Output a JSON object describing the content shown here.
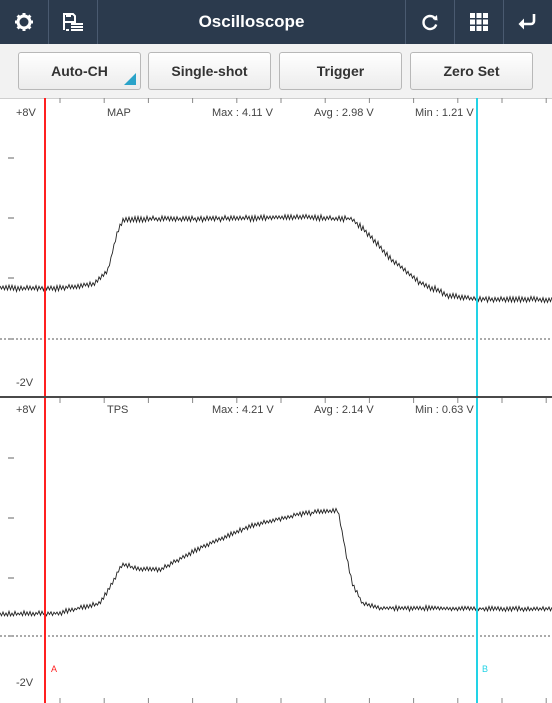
{
  "toolbar": {
    "title": "Oscilloscope",
    "icons": [
      "gear-icon",
      "save-list-icon",
      "refresh-icon",
      "grid-icon",
      "back-icon"
    ]
  },
  "buttons": {
    "auto_ch": "Auto-CH",
    "single_shot": "Single-shot",
    "trigger": "Trigger",
    "zero_set": "Zero Set"
  },
  "colors": {
    "topbar": "#2b3a4d",
    "cursor_a": "#ff2020",
    "cursor_b": "#22d3e6",
    "accent": "#2aa3c9",
    "trace": "#222222"
  },
  "channels": [
    {
      "name": "MAP",
      "top_label": "+8V",
      "bottom_label": "-2V",
      "max": "Max : 4.11 V",
      "avg": "Avg : 2.98 V",
      "min": "Min : 1.21 V"
    },
    {
      "name": "TPS",
      "top_label": "+8V",
      "bottom_label": "-2V",
      "max": "Max : 4.21 V",
      "avg": "Avg : 2.14 V",
      "min": "Min : 0.63 V"
    }
  ],
  "cursors": {
    "a_label": "A",
    "b_label": "B"
  }
}
